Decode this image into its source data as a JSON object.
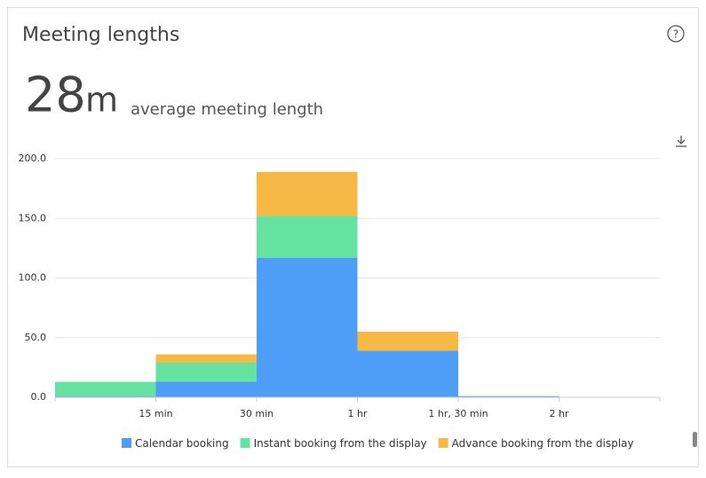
{
  "header": {
    "title": "Meeting lengths"
  },
  "metric": {
    "value": 28,
    "unit": "m",
    "label": "average meeting length"
  },
  "chart_data": {
    "type": "stacked-bar",
    "edge_labels": [
      null,
      "15 min",
      "30 min",
      "1 hr",
      "1 hr, 30 min",
      "2 hr",
      null
    ],
    "series": [
      {
        "name": "Calendar booking",
        "color": "#4e9ef7",
        "values": [
          1,
          13,
          117,
          39,
          1,
          0
        ]
      },
      {
        "name": "Instant booking from the display",
        "color": "#66e3a0",
        "values": [
          12,
          16,
          35,
          0,
          0,
          0
        ]
      },
      {
        "name": "Advance booking from the display",
        "color": "#f7b844",
        "values": [
          0,
          7,
          37,
          16,
          0,
          0
        ]
      }
    ],
    "ylim": [
      0,
      200
    ],
    "yticks": [
      {
        "value": 0,
        "label": "0.0"
      },
      {
        "value": 50,
        "label": "50.0"
      },
      {
        "value": 100,
        "label": "100.0"
      },
      {
        "value": 150,
        "label": "150.0"
      },
      {
        "value": 200,
        "label": "200.0"
      }
    ],
    "grid": true
  }
}
